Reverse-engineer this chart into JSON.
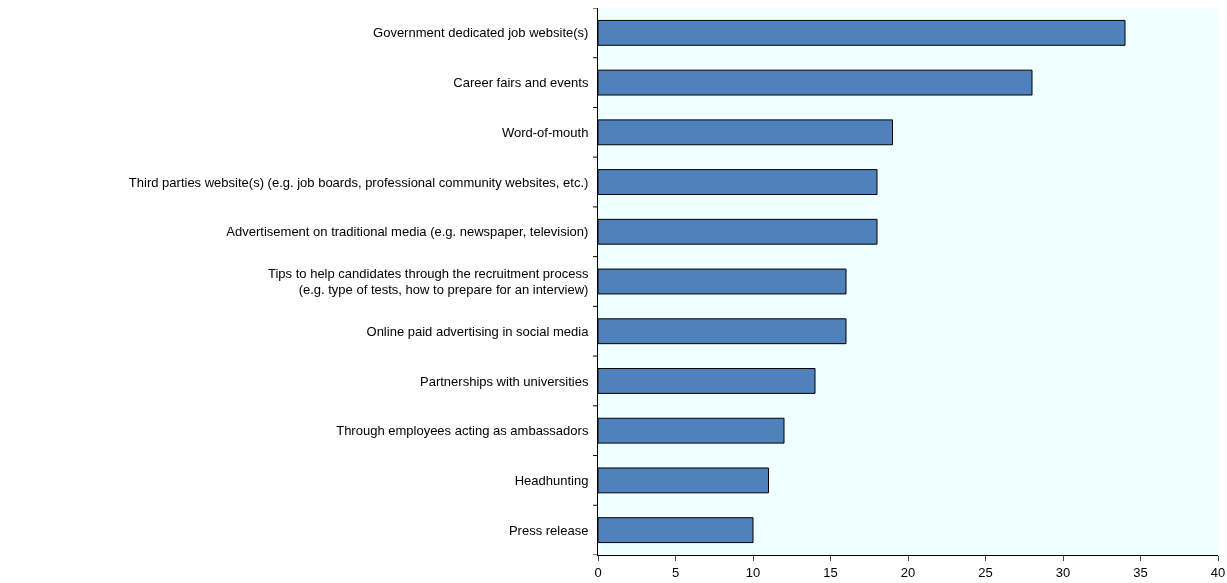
{
  "chart_data": {
    "type": "bar",
    "orientation": "horizontal",
    "categories": [
      "Government dedicated job website(s)",
      "Career fairs and events",
      "Word-of-mouth",
      "Third parties website(s) (e.g. job boards, professional community websites, etc.)",
      "Advertisement on traditional media (e.g. newspaper, television)",
      "Tips to help candidates through the recruitment process\n(e.g. type of tests, how to prepare for an interview)",
      "Online paid advertising in social media",
      "Partnerships with universities",
      "Through employees acting as ambassadors",
      "Headhunting",
      "Press release"
    ],
    "values": [
      34,
      28,
      19,
      18,
      18,
      16,
      16,
      14,
      12,
      11,
      10
    ],
    "color": "#4f81bd",
    "xlim": [
      0,
      40
    ],
    "xticks": [
      0,
      5,
      10,
      15,
      20,
      25,
      30,
      35,
      40
    ],
    "grid": false
  }
}
